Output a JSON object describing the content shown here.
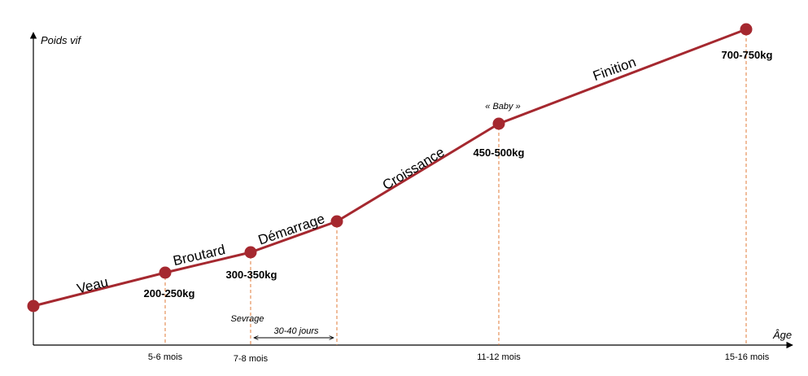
{
  "axes": {
    "y_title": "Poids vif",
    "x_title": "Âge"
  },
  "age_ticks": [
    "5-6 mois",
    "7-8 mois",
    "11-12 mois",
    "15-16 mois"
  ],
  "weights": [
    "200-250kg",
    "300-350kg",
    "450-500kg",
    "700-750kg"
  ],
  "phases": [
    "Veau",
    "Broutard",
    "Démarrage",
    "Croissance",
    "Finition"
  ],
  "notes": {
    "baby": "« Baby »",
    "weaning": "Sevrage",
    "duration": "30-40 jours"
  },
  "colors": {
    "line": "#a5282f",
    "marker": "#a5282f",
    "guide": "#e07b39",
    "axis": "#000000"
  }
}
